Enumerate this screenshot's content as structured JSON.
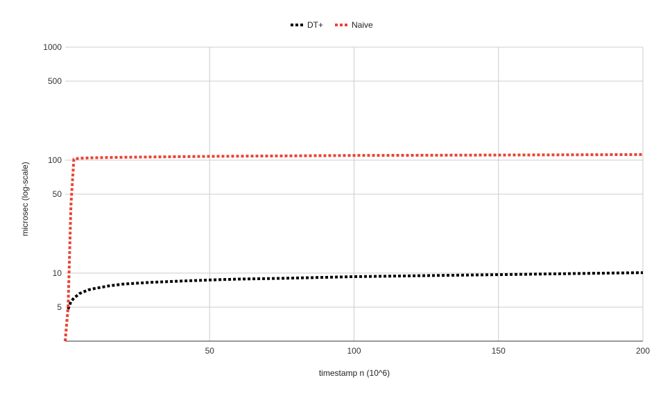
{
  "chart_data": {
    "type": "line",
    "xlabel": "timestamp n (10^6)",
    "ylabel": "microsec (log-scale)",
    "yscale": "log",
    "xlim": [
      0,
      200
    ],
    "ylim": [
      2.5,
      1000
    ],
    "x_ticks": [
      50,
      100,
      150,
      200
    ],
    "x_tick_labels": [
      "50",
      "100",
      "150",
      "200"
    ],
    "y_ticks": [
      5,
      10,
      50,
      100,
      500,
      1000
    ],
    "y_tick_labels": [
      "5",
      "10",
      "50",
      "100",
      "500",
      "1000"
    ],
    "grid": true,
    "legend_position": "top",
    "series": [
      {
        "name": "DT+",
        "color": "#000000",
        "style": "dotted",
        "x": [
          1,
          2,
          3,
          5,
          8,
          10,
          15,
          20,
          30,
          40,
          50,
          60,
          75,
          100,
          125,
          150,
          175,
          200
        ],
        "y": [
          4.8,
          5.6,
          6.0,
          6.6,
          7.1,
          7.3,
          7.7,
          8.0,
          8.3,
          8.5,
          8.7,
          8.85,
          9.0,
          9.3,
          9.5,
          9.7,
          9.9,
          10.1
        ]
      },
      {
        "name": "Naive",
        "color": "#ea4335",
        "style": "dotted",
        "x": [
          0,
          1,
          2,
          3,
          5,
          10,
          20,
          50,
          100,
          150,
          200
        ],
        "y": [
          2.5,
          5.0,
          40.0,
          102.0,
          104.0,
          105.0,
          106.0,
          108.0,
          110.0,
          111.0,
          112.0
        ]
      }
    ]
  }
}
